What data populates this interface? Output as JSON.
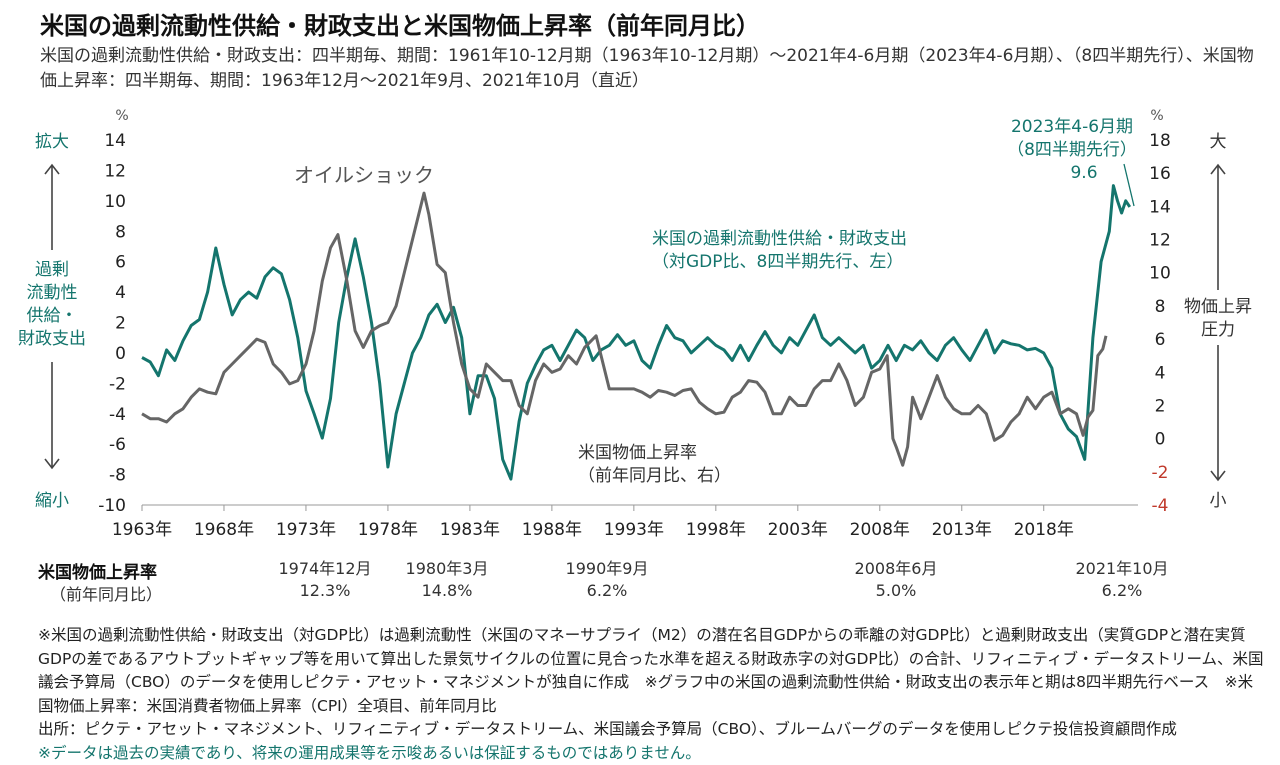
{
  "title": "米国の過剰流動性供給・財政支出と米国物価上昇率（前年同月比）",
  "subtitle": "米国の過剰流動性供給・財政支出：四半期毎、期間：1961年10-12月期（1963年10-12月期）～2021年4-6月期（2023年4-6月期）、（8四半期先行）、米国物価上昇率：四半期毎、期間：1963年12月～2021年9月、2021年10月（直近）",
  "colors": {
    "teal": "#14756d",
    "gray": "#666666",
    "red": "#c0392b",
    "axis": "#999999"
  },
  "chart_data": {
    "type": "line",
    "x_tick_labels": [
      "1963年",
      "1968年",
      "1973年",
      "1978年",
      "1983年",
      "1988年",
      "1993年",
      "1998年",
      "2003年",
      "2008年",
      "2013年",
      "2018年"
    ],
    "x_range": [
      1963.0,
      2023.75
    ],
    "left_axis": {
      "unit": "%",
      "range": [
        -10,
        14
      ],
      "ticks": [
        "14",
        "12",
        "10",
        "8",
        "6",
        "4",
        "2",
        "0",
        "-2",
        "-4",
        "-6",
        "-8",
        "-10"
      ]
    },
    "right_axis": {
      "unit": "%",
      "range": [
        -4,
        18
      ],
      "ticks": [
        "18",
        "16",
        "14",
        "12",
        "10",
        "8",
        "6",
        "4",
        "2",
        "0",
        "-2",
        "-4"
      ]
    },
    "left_side_labels": {
      "top": "拡大",
      "middle": "過剰\n流動性\n供給・\n財政支出",
      "bottom": "縮小"
    },
    "right_side_labels": {
      "top": "大",
      "middle": "物価上昇\n圧力",
      "bottom": "小"
    },
    "annotations": {
      "oil_shock": "オイルショック",
      "peak_line1": "2023年4-6月期",
      "peak_line2": "（8四半期先行）",
      "peak_line3": "9.6",
      "series1_name": "米国の過剰流動性供給・財政支出",
      "series1_desc": "（対GDP比、8四半期先行、左）",
      "series2_name": "米国物価上昇率",
      "series2_desc": "（前年同月比、右）"
    },
    "series": [
      {
        "name": "米国の過剰流動性供給・財政支出",
        "axis": "left",
        "color": "#14756d",
        "points": [
          [
            1963.0,
            -0.3
          ],
          [
            1963.5,
            -0.6
          ],
          [
            1964.0,
            -1.5
          ],
          [
            1964.5,
            0.2
          ],
          [
            1965.0,
            -0.5
          ],
          [
            1965.5,
            0.8
          ],
          [
            1966.0,
            1.8
          ],
          [
            1966.5,
            2.2
          ],
          [
            1967.0,
            4.0
          ],
          [
            1967.5,
            6.9
          ],
          [
            1968.0,
            4.5
          ],
          [
            1968.5,
            2.5
          ],
          [
            1969.0,
            3.5
          ],
          [
            1969.5,
            4.0
          ],
          [
            1970.0,
            3.6
          ],
          [
            1970.5,
            5.0
          ],
          [
            1971.0,
            5.6
          ],
          [
            1971.5,
            5.2
          ],
          [
            1972.0,
            3.5
          ],
          [
            1972.5,
            1.0
          ],
          [
            1973.0,
            -2.5
          ],
          [
            1973.5,
            -4.0
          ],
          [
            1974.0,
            -5.6
          ],
          [
            1974.5,
            -3.0
          ],
          [
            1975.0,
            2.0
          ],
          [
            1975.5,
            5.0
          ],
          [
            1976.0,
            7.5
          ],
          [
            1976.5,
            5.0
          ],
          [
            1977.0,
            2.0
          ],
          [
            1977.5,
            -2.0
          ],
          [
            1978.0,
            -7.5
          ],
          [
            1978.5,
            -4.0
          ],
          [
            1979.0,
            -2.0
          ],
          [
            1979.5,
            0.0
          ],
          [
            1980.0,
            1.0
          ],
          [
            1980.5,
            2.5
          ],
          [
            1981.0,
            3.2
          ],
          [
            1981.5,
            2.0
          ],
          [
            1982.0,
            3.0
          ],
          [
            1982.5,
            1.0
          ],
          [
            1983.0,
            -4.0
          ],
          [
            1983.5,
            -1.5
          ],
          [
            1984.0,
            -1.5
          ],
          [
            1984.5,
            -3.0
          ],
          [
            1985.0,
            -7.0
          ],
          [
            1985.5,
            -8.3
          ],
          [
            1986.0,
            -4.5
          ],
          [
            1986.5,
            -2.0
          ],
          [
            1987.0,
            -0.8
          ],
          [
            1987.5,
            0.2
          ],
          [
            1988.0,
            0.5
          ],
          [
            1988.5,
            -0.5
          ],
          [
            1989.0,
            0.5
          ],
          [
            1989.5,
            1.5
          ],
          [
            1990.0,
            1.0
          ],
          [
            1990.5,
            -0.5
          ],
          [
            1991.0,
            0.2
          ],
          [
            1991.5,
            0.5
          ],
          [
            1992.0,
            1.2
          ],
          [
            1992.5,
            0.5
          ],
          [
            1993.0,
            0.8
          ],
          [
            1993.5,
            -0.5
          ],
          [
            1994.0,
            -1.0
          ],
          [
            1994.5,
            0.5
          ],
          [
            1995.0,
            1.8
          ],
          [
            1995.5,
            1.0
          ],
          [
            1996.0,
            0.8
          ],
          [
            1996.5,
            0.0
          ],
          [
            1997.0,
            0.5
          ],
          [
            1997.5,
            1.0
          ],
          [
            1998.0,
            0.5
          ],
          [
            1998.5,
            0.2
          ],
          [
            1999.0,
            -0.5
          ],
          [
            1999.5,
            0.5
          ],
          [
            2000.0,
            -0.5
          ],
          [
            2000.5,
            0.5
          ],
          [
            2001.0,
            1.4
          ],
          [
            2001.5,
            0.5
          ],
          [
            2002.0,
            0.0
          ],
          [
            2002.5,
            1.0
          ],
          [
            2003.0,
            0.5
          ],
          [
            2003.5,
            1.5
          ],
          [
            2004.0,
            2.5
          ],
          [
            2004.5,
            1.0
          ],
          [
            2005.0,
            0.5
          ],
          [
            2005.5,
            1.0
          ],
          [
            2006.0,
            0.5
          ],
          [
            2006.5,
            0.0
          ],
          [
            2007.0,
            0.5
          ],
          [
            2007.5,
            -1.0
          ],
          [
            2008.0,
            -0.5
          ],
          [
            2008.5,
            0.5
          ],
          [
            2009.0,
            -0.5
          ],
          [
            2009.5,
            0.5
          ],
          [
            2010.0,
            0.2
          ],
          [
            2010.5,
            0.8
          ],
          [
            2011.0,
            0.0
          ],
          [
            2011.5,
            -0.5
          ],
          [
            2012.0,
            0.5
          ],
          [
            2012.5,
            1.0
          ],
          [
            2013.0,
            0.2
          ],
          [
            2013.5,
            -0.5
          ],
          [
            2014.0,
            0.5
          ],
          [
            2014.5,
            1.5
          ],
          [
            2015.0,
            0.0
          ],
          [
            2015.5,
            0.8
          ],
          [
            2016.0,
            0.6
          ],
          [
            2016.5,
            0.5
          ],
          [
            2017.0,
            0.2
          ],
          [
            2017.5,
            0.3
          ],
          [
            2018.0,
            0.0
          ],
          [
            2018.5,
            -1.0
          ],
          [
            2019.0,
            -4.0
          ],
          [
            2019.5,
            -5.0
          ],
          [
            2020.0,
            -5.5
          ],
          [
            2020.5,
            -7.0
          ],
          [
            2021.0,
            1.0
          ],
          [
            2021.5,
            6.0
          ],
          [
            2022.0,
            8.0
          ],
          [
            2022.25,
            11.0
          ],
          [
            2022.5,
            10.0
          ],
          [
            2022.75,
            9.2
          ],
          [
            2023.0,
            10.0
          ],
          [
            2023.25,
            9.6
          ]
        ]
      },
      {
        "name": "米国物価上昇率",
        "axis": "right",
        "color": "#666666",
        "points": [
          [
            1963.0,
            1.5
          ],
          [
            1963.5,
            1.2
          ],
          [
            1964.0,
            1.2
          ],
          [
            1964.5,
            1.0
          ],
          [
            1965.0,
            1.5
          ],
          [
            1965.5,
            1.8
          ],
          [
            1966.0,
            2.5
          ],
          [
            1966.5,
            3.0
          ],
          [
            1967.0,
            2.8
          ],
          [
            1967.5,
            2.7
          ],
          [
            1968.0,
            4.0
          ],
          [
            1968.5,
            4.5
          ],
          [
            1969.0,
            5.0
          ],
          [
            1969.5,
            5.5
          ],
          [
            1970.0,
            6.0
          ],
          [
            1970.5,
            5.8
          ],
          [
            1971.0,
            4.5
          ],
          [
            1971.5,
            4.0
          ],
          [
            1972.0,
            3.3
          ],
          [
            1972.5,
            3.5
          ],
          [
            1973.0,
            4.5
          ],
          [
            1973.5,
            6.5
          ],
          [
            1974.0,
            9.5
          ],
          [
            1974.5,
            11.5
          ],
          [
            1974.95,
            12.3
          ],
          [
            1975.5,
            9.5
          ],
          [
            1976.0,
            6.5
          ],
          [
            1976.5,
            5.5
          ],
          [
            1977.0,
            6.5
          ],
          [
            1977.5,
            6.8
          ],
          [
            1978.0,
            7.0
          ],
          [
            1978.5,
            8.0
          ],
          [
            1979.0,
            10.0
          ],
          [
            1979.5,
            12.0
          ],
          [
            1980.2,
            14.8
          ],
          [
            1980.5,
            13.5
          ],
          [
            1981.0,
            10.5
          ],
          [
            1981.5,
            10.0
          ],
          [
            1982.0,
            7.0
          ],
          [
            1982.5,
            4.5
          ],
          [
            1983.0,
            3.0
          ],
          [
            1983.5,
            2.5
          ],
          [
            1984.0,
            4.5
          ],
          [
            1984.5,
            4.0
          ],
          [
            1985.0,
            3.5
          ],
          [
            1985.5,
            3.5
          ],
          [
            1986.0,
            2.0
          ],
          [
            1986.5,
            1.5
          ],
          [
            1987.0,
            3.5
          ],
          [
            1987.5,
            4.5
          ],
          [
            1988.0,
            4.0
          ],
          [
            1988.5,
            4.2
          ],
          [
            1989.0,
            5.0
          ],
          [
            1989.5,
            4.5
          ],
          [
            1990.0,
            5.5
          ],
          [
            1990.7,
            6.2
          ],
          [
            1991.0,
            5.0
          ],
          [
            1991.5,
            3.0
          ],
          [
            1992.0,
            3.0
          ],
          [
            1992.5,
            3.0
          ],
          [
            1993.0,
            3.0
          ],
          [
            1993.5,
            2.8
          ],
          [
            1994.0,
            2.5
          ],
          [
            1994.5,
            2.9
          ],
          [
            1995.0,
            2.8
          ],
          [
            1995.5,
            2.6
          ],
          [
            1996.0,
            2.9
          ],
          [
            1996.5,
            3.0
          ],
          [
            1997.0,
            2.2
          ],
          [
            1997.5,
            1.8
          ],
          [
            1998.0,
            1.5
          ],
          [
            1998.5,
            1.6
          ],
          [
            1999.0,
            2.5
          ],
          [
            1999.5,
            2.8
          ],
          [
            2000.0,
            3.5
          ],
          [
            2000.5,
            3.4
          ],
          [
            2001.0,
            2.8
          ],
          [
            2001.5,
            1.5
          ],
          [
            2002.0,
            1.5
          ],
          [
            2002.5,
            2.5
          ],
          [
            2003.0,
            2.0
          ],
          [
            2003.5,
            2.0
          ],
          [
            2004.0,
            3.0
          ],
          [
            2004.5,
            3.5
          ],
          [
            2005.0,
            3.5
          ],
          [
            2005.5,
            4.5
          ],
          [
            2006.0,
            3.5
          ],
          [
            2006.5,
            2.0
          ],
          [
            2007.0,
            2.5
          ],
          [
            2007.5,
            4.0
          ],
          [
            2008.0,
            4.2
          ],
          [
            2008.45,
            5.0
          ],
          [
            2008.8,
            0.0
          ],
          [
            2009.0,
            -0.5
          ],
          [
            2009.4,
            -1.6
          ],
          [
            2009.7,
            -0.5
          ],
          [
            2010.0,
            2.5
          ],
          [
            2010.5,
            1.2
          ],
          [
            2011.0,
            2.5
          ],
          [
            2011.5,
            3.8
          ],
          [
            2012.0,
            2.5
          ],
          [
            2012.5,
            1.8
          ],
          [
            2013.0,
            1.5
          ],
          [
            2013.5,
            1.5
          ],
          [
            2014.0,
            2.0
          ],
          [
            2014.5,
            1.5
          ],
          [
            2015.0,
            -0.1
          ],
          [
            2015.5,
            0.2
          ],
          [
            2016.0,
            1.0
          ],
          [
            2016.5,
            1.5
          ],
          [
            2017.0,
            2.5
          ],
          [
            2017.5,
            1.8
          ],
          [
            2018.0,
            2.5
          ],
          [
            2018.5,
            2.8
          ],
          [
            2019.0,
            1.5
          ],
          [
            2019.5,
            1.8
          ],
          [
            2020.0,
            1.5
          ],
          [
            2020.4,
            0.2
          ],
          [
            2020.7,
            1.3
          ],
          [
            2021.0,
            1.7
          ],
          [
            2021.3,
            5.0
          ],
          [
            2021.6,
            5.4
          ],
          [
            2021.8,
            6.2
          ]
        ]
      }
    ]
  },
  "record_label": {
    "title": "米国物価上昇率",
    "subtitle": "（前年同月比）"
  },
  "records": [
    {
      "date": "1974年12月",
      "value": "12.3%"
    },
    {
      "date": "1980年3月",
      "value": "14.8%"
    },
    {
      "date": "1990年9月",
      "value": "6.2%"
    },
    {
      "date": "2008年6月",
      "value": "5.0%"
    },
    {
      "date": "2021年10月",
      "value": "6.2%"
    }
  ],
  "notes": [
    "※米国の過剰流動性供給・財政支出（対GDP比）は過剰流動性（米国のマネーサプライ（M2）の潜在名目GDPからの乖離の対GDP比）と過剰財政支出（実質GDPと潜在実質GDPの差であるアウトプットギャップ等を用いて算出した景気サイクルの位置に見合った水準を超える財政赤字の対GDP比）の合計、リフィニティブ・データストリーム、米国議会予算局（CBO）のデータを使用しピクテ・アセット・マネジメントが独自に作成　※グラフ中の米国の過剰流動性供給・財政支出の表示年と期は8四半期先行ベース　※米国物価上昇率：米国消費者物価上昇率（CPI）全項目、前年同月比",
    "出所：ピクテ・アセット・マネジメント、リフィニティブ・データストリーム、米国議会予算局（CBO）、ブルームバーグのデータを使用しピクテ投信投資顧問作成"
  ],
  "disclaimer": "※データは過去の実績であり、将来の運用成果等を示唆あるいは保証するものではありません。"
}
